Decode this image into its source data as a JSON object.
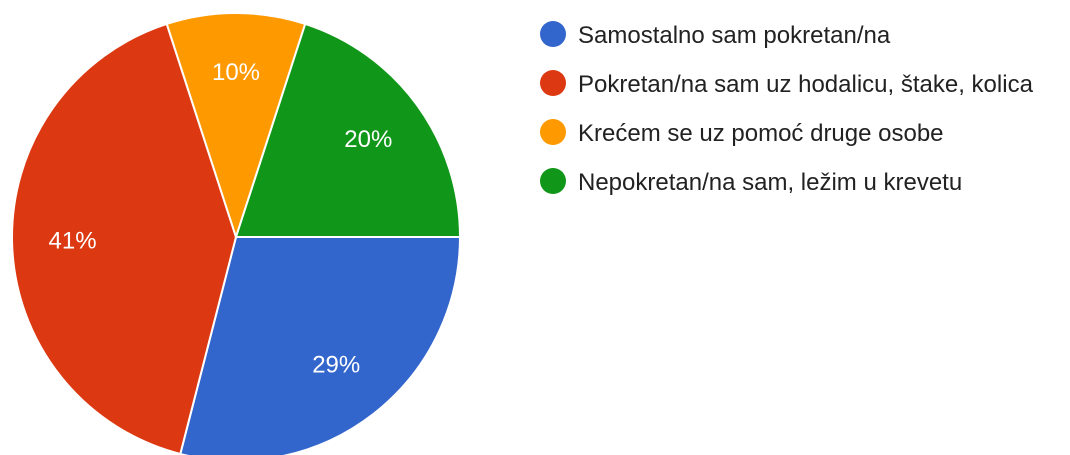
{
  "chart_data": {
    "type": "pie",
    "series": [
      {
        "name": "Samostalno sam pokretan/na",
        "color": "#3366cc"
      },
      {
        "name": "Pokretan/na sam uz hodalicu, štake, kolica",
        "color": "#dc3912"
      },
      {
        "name": "Krećem se uz pomoć druge osobe",
        "color": "#ff9900"
      },
      {
        "name": "Nepokretan/na sam, ležim u krevetu",
        "color": "#109618"
      }
    ],
    "values": [
      29,
      41,
      10,
      20
    ],
    "value_labels": [
      "29%",
      "41%",
      "10%",
      "20%"
    ],
    "legend": "right"
  }
}
